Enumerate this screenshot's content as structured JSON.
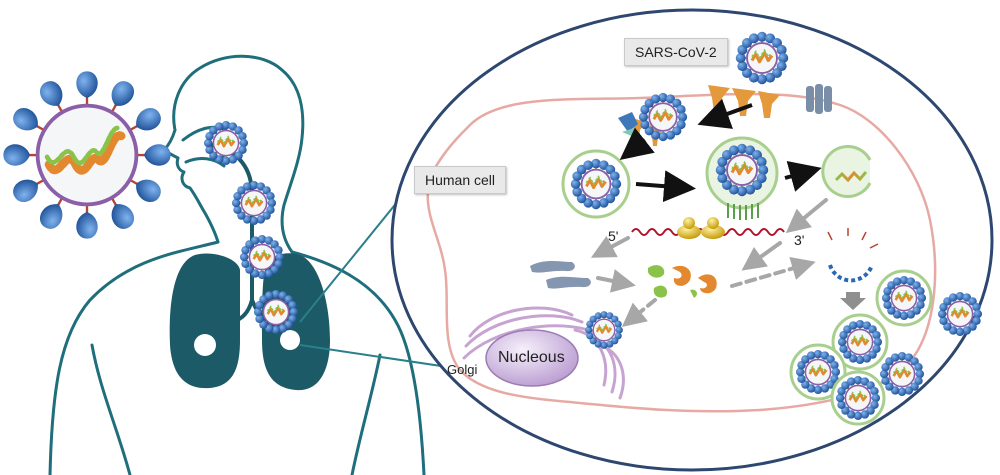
{
  "labels": {
    "virus": "SARS-CoV-2",
    "human_cell": "Human cell",
    "five_prime": "5'",
    "three_prime": "3'",
    "golgi": "Golgi",
    "nucleus": "Nucleous"
  },
  "colors": {
    "body_outline": "#1f6e7c",
    "lung": "#1b5a66",
    "cell_ellipse": "#2e4770",
    "cell_membrane": "#e7a9a3",
    "spike": "#2a67b5",
    "envelope": "#f4f6f8",
    "vesicle": "#a8cf8e",
    "rna_green": "#8bc34a",
    "rna_orange": "#e3882e",
    "rna_strand": "#b5122a",
    "ribosome": "#e6c21e",
    "golgi": "#c7a3d1",
    "nucleus": "#dbc9ea",
    "receptor": "#e49a3c",
    "arrow_black": "#111111",
    "arrow_gray": "#a7a7a7"
  }
}
